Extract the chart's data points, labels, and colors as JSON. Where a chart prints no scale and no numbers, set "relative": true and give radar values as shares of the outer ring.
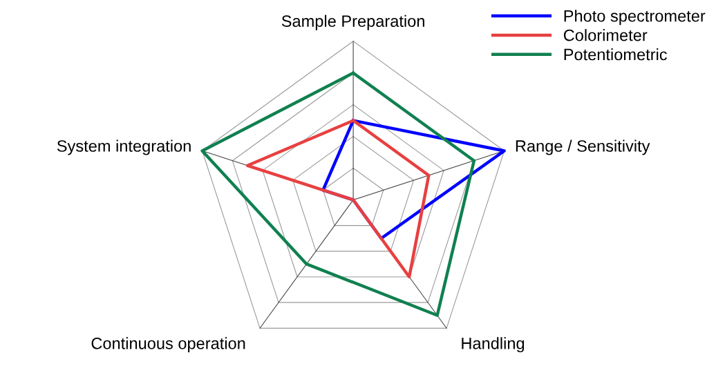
{
  "chart_data": {
    "type": "radar",
    "relative": true,
    "grid": true,
    "legend": "top right",
    "marker": "none",
    "line_style": "solid",
    "categories": [
      "Sample Preparation",
      "Range / Sensitivity",
      "Handling",
      "Continuous operation",
      "System integration"
    ],
    "series": [
      {
        "name": "Photo spectrometer",
        "color": "#0000ff",
        "values": [
          0.5,
          1.0,
          0.3,
          0.0,
          0.2
        ]
      },
      {
        "name": "Colorimeter",
        "color": "#e84040",
        "values": [
          0.5,
          0.5,
          0.6,
          0.0,
          0.7
        ]
      },
      {
        "name": "Potentiometric",
        "color": "#108050",
        "values": [
          0.8,
          0.8,
          0.9,
          0.5,
          1.0
        ]
      }
    ]
  }
}
